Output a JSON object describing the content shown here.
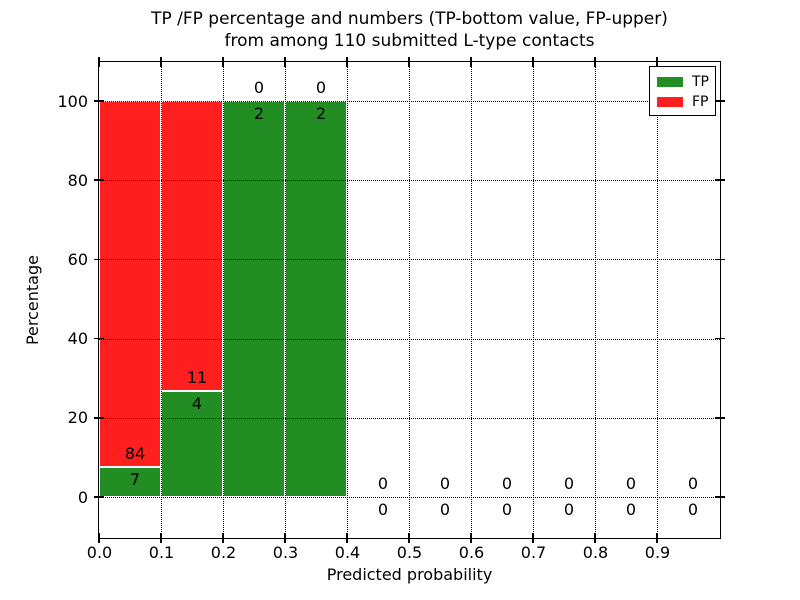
{
  "figure": {
    "title_line1": "TP /FP percentage and numbers (TP-bottom value, FP-upper)",
    "title_line2": "from among 110 submitted L-type contacts",
    "xlabel": "Predicted probability",
    "ylabel": "Percentage"
  },
  "legend": {
    "position": "upper-right",
    "items": [
      {
        "label": "TP",
        "color": "#228d22"
      },
      {
        "label": "FP",
        "color": "#ff1f1f"
      }
    ]
  },
  "chart_data": {
    "type": "bar",
    "stacked": true,
    "title": "TP /FP percentage and numbers (TP-bottom value, FP-upper) from among 110 submitted L-type contacts",
    "xlabel": "Predicted probability",
    "ylabel": "Percentage",
    "xlim": [
      0.0,
      1.0
    ],
    "ylim": [
      -10,
      110
    ],
    "bin_width": 0.1,
    "total_contacts": 110,
    "grid": true,
    "grid_style": "dotted",
    "legend_position": "upper right",
    "series": [
      {
        "name": "TP",
        "color": "#228d22"
      },
      {
        "name": "FP",
        "color": "#ff1f1f"
      }
    ],
    "bins": [
      {
        "range": [
          0.0,
          0.1
        ],
        "tp": 7,
        "fp": 84,
        "tp_pct": 7.69,
        "fp_pct": 92.31
      },
      {
        "range": [
          0.1,
          0.2
        ],
        "tp": 4,
        "fp": 11,
        "tp_pct": 26.67,
        "fp_pct": 73.33
      },
      {
        "range": [
          0.2,
          0.3
        ],
        "tp": 2,
        "fp": 0,
        "tp_pct": 100.0,
        "fp_pct": 0.0
      },
      {
        "range": [
          0.3,
          0.4
        ],
        "tp": 2,
        "fp": 0,
        "tp_pct": 100.0,
        "fp_pct": 0.0
      },
      {
        "range": [
          0.4,
          0.5
        ],
        "tp": 0,
        "fp": 0,
        "tp_pct": 0.0,
        "fp_pct": 0.0
      },
      {
        "range": [
          0.5,
          0.6
        ],
        "tp": 0,
        "fp": 0,
        "tp_pct": 0.0,
        "fp_pct": 0.0
      },
      {
        "range": [
          0.6,
          0.7
        ],
        "tp": 0,
        "fp": 0,
        "tp_pct": 0.0,
        "fp_pct": 0.0
      },
      {
        "range": [
          0.7,
          0.8
        ],
        "tp": 0,
        "fp": 0,
        "tp_pct": 0.0,
        "fp_pct": 0.0
      },
      {
        "range": [
          0.8,
          0.9
        ],
        "tp": 0,
        "fp": 0,
        "tp_pct": 0.0,
        "fp_pct": 0.0
      },
      {
        "range": [
          0.9,
          1.0
        ],
        "tp": 0,
        "fp": 0,
        "tp_pct": 0.0,
        "fp_pct": 0.0
      }
    ],
    "xtick_values": [
      0.0,
      0.1,
      0.2,
      0.3,
      0.4,
      0.5,
      0.6,
      0.7,
      0.8,
      0.9
    ],
    "xtick_labels": [
      "0.0",
      "0.1",
      "0.2",
      "0.3",
      "0.4",
      "0.5",
      "0.6",
      "0.7",
      "0.8",
      "0.9"
    ],
    "ytick_values": [
      0,
      20,
      40,
      60,
      80,
      100
    ],
    "ytick_labels": [
      "0",
      "20",
      "40",
      "60",
      "80",
      "100"
    ],
    "xgrid_values": [
      0.1,
      0.2,
      0.3,
      0.4,
      0.5,
      0.6,
      0.7,
      0.8,
      0.9
    ],
    "ygrid_values": [
      0,
      20,
      40,
      60,
      80,
      100
    ]
  }
}
